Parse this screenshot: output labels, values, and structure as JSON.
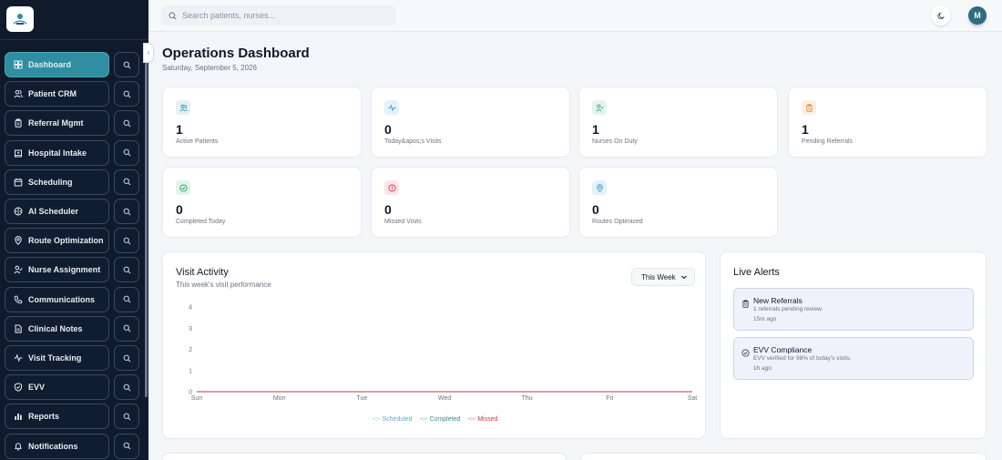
{
  "colors": {
    "sidebar_bg": "#0f1a2b",
    "active_item": "#2f8fa0",
    "scheduled": "#5aa9d6",
    "completed": "#2f8fa0",
    "missed": "#c0394d",
    "avatar": "#2d6e7e"
  },
  "sidebar": {
    "logo_icon": "clinic-logo",
    "items": [
      {
        "label": "Dashboard",
        "icon": "grid-icon",
        "active": true
      },
      {
        "label": "Patient CRM",
        "icon": "users-icon"
      },
      {
        "label": "Referral Mgmt",
        "icon": "clipboard-icon"
      },
      {
        "label": "Hospital Intake",
        "icon": "hospital-icon"
      },
      {
        "label": "Scheduling",
        "icon": "calendar-icon"
      },
      {
        "label": "AI Scheduler",
        "icon": "brain-icon"
      },
      {
        "label": "Route Optimization",
        "icon": "map-pin-icon"
      },
      {
        "label": "Nurse Assignment",
        "icon": "user-check-icon"
      },
      {
        "label": "Communications",
        "icon": "phone-icon"
      },
      {
        "label": "Clinical Notes",
        "icon": "file-icon"
      },
      {
        "label": "Visit Tracking",
        "icon": "activity-icon"
      },
      {
        "label": "EVV",
        "icon": "shield-icon"
      },
      {
        "label": "Reports",
        "icon": "bar-chart-icon"
      },
      {
        "label": "Notifications",
        "icon": "bell-icon"
      }
    ]
  },
  "topbar": {
    "search_placeholder": "Search patients, nurses...",
    "avatar_initial": "M"
  },
  "header": {
    "title": "Operations Dashboard",
    "date": "Saturday, September 5, 2026"
  },
  "stats": [
    {
      "value": "1",
      "label": "Active Patients",
      "icon": "users-icon",
      "color": "#2f8fa0",
      "bg": "#e3f1f4"
    },
    {
      "value": "0",
      "label": "Today&apos;s Visits",
      "icon": "activity-icon",
      "color": "#3b9bd0",
      "bg": "#e4f1f9"
    },
    {
      "value": "1",
      "label": "Nurses On Duty",
      "icon": "user-check-icon",
      "color": "#2f9e7a",
      "bg": "#e3f4ee"
    },
    {
      "value": "1",
      "label": "Pending Referrals",
      "icon": "clipboard-icon",
      "color": "#e08a3a",
      "bg": "#fcefe2"
    },
    {
      "value": "0",
      "label": "Completed Today",
      "icon": "check-circle-icon",
      "color": "#2f9e5a",
      "bg": "#e3f4e8"
    },
    {
      "value": "0",
      "label": "Missed Visits",
      "icon": "alert-circle-icon",
      "color": "#d0394d",
      "bg": "#fbe4e7"
    },
    {
      "value": "0",
      "label": "Routes Optimized",
      "icon": "map-pin-icon",
      "color": "#3b9bd0",
      "bg": "#e4f1f9"
    }
  ],
  "visit_activity": {
    "title": "Visit Activity",
    "subtitle": "This week's visit performance",
    "range": "This Week"
  },
  "chart_data": {
    "type": "line",
    "categories": [
      "Sun",
      "Mon",
      "Tue",
      "Wed",
      "Thu",
      "Fri",
      "Sat"
    ],
    "y_ticks": [
      "0",
      "1",
      "2",
      "3",
      "4"
    ],
    "ylim": [
      0,
      4
    ],
    "series": [
      {
        "name": "Scheduled",
        "values": [
          0,
          0,
          0,
          0,
          0,
          0,
          0
        ],
        "color": "#5aa9d6"
      },
      {
        "name": "Completed",
        "values": [
          0,
          0,
          0,
          0,
          0,
          0,
          0
        ],
        "color": "#2f8fa0"
      },
      {
        "name": "Missed",
        "values": [
          0,
          0,
          0,
          0,
          0,
          0,
          0
        ],
        "color": "#c0394d"
      }
    ],
    "legend_position": "bottom",
    "grid": false
  },
  "alerts": {
    "title": "Live Alerts",
    "items": [
      {
        "title": "New Referrals",
        "desc": "1 referrals pending review.",
        "time": "15m ago",
        "icon": "clipboard-icon"
      },
      {
        "title": "EVV Compliance",
        "desc": "EVV verified for 98% of today's visits.",
        "time": "1h ago",
        "icon": "check-circle-icon"
      }
    ]
  }
}
